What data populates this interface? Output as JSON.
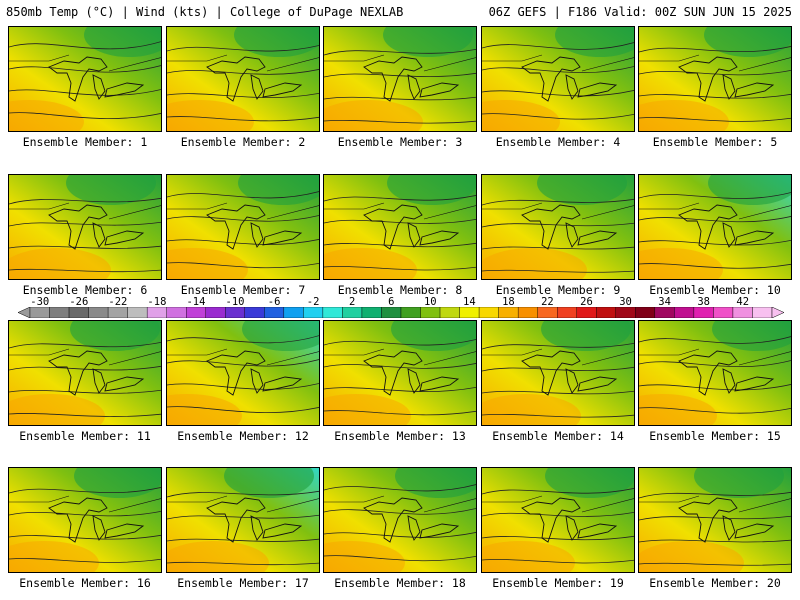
{
  "header": {
    "left_title": "850mb Temp (°C) | Wind (kts) | College of DuPage NEXLAB",
    "right_title": "06Z GEFS | F186 Valid: 00Z SUN JUN 15 2025"
  },
  "colorbar": {
    "ticks": [
      "-30",
      "-26",
      "-22",
      "-18",
      "-14",
      "-10",
      "-6",
      "-2",
      "2",
      "6",
      "10",
      "14",
      "18",
      "22",
      "26",
      "30",
      "34",
      "38",
      "42"
    ],
    "colors": [
      "#9a9a9a",
      "#7f7f7f",
      "#6a6a6a",
      "#8a8a8a",
      "#a3a3a3",
      "#bdbdbd",
      "#e0a0e8",
      "#d070e0",
      "#c040d8",
      "#9a2bd0",
      "#6a30d0",
      "#3a3ad8",
      "#2060e0",
      "#10a0f0",
      "#20d0f0",
      "#30e8d8",
      "#20d0a0",
      "#10b070",
      "#209040",
      "#40a020",
      "#80c010",
      "#c0d810",
      "#f0f000",
      "#f8d800",
      "#f8b000",
      "#f89000",
      "#f86820",
      "#f04020",
      "#e01818",
      "#c01010",
      "#a00818",
      "#800018",
      "#a00860",
      "#c01090",
      "#e020b0",
      "#f050c8",
      "#f090e0",
      "#f8c0f0"
    ]
  },
  "members": [
    {
      "label": "Ensemble Member: 1"
    },
    {
      "label": "Ensemble Member: 2"
    },
    {
      "label": "Ensemble Member: 3"
    },
    {
      "label": "Ensemble Member: 4"
    },
    {
      "label": "Ensemble Member: 5"
    },
    {
      "label": "Ensemble Member: 6"
    },
    {
      "label": "Ensemble Member: 7"
    },
    {
      "label": "Ensemble Member: 8"
    },
    {
      "label": "Ensemble Member: 9"
    },
    {
      "label": "Ensemble Member: 10"
    },
    {
      "label": "Ensemble Member: 11"
    },
    {
      "label": "Ensemble Member: 12"
    },
    {
      "label": "Ensemble Member: 13"
    },
    {
      "label": "Ensemble Member: 14"
    },
    {
      "label": "Ensemble Member: 15"
    },
    {
      "label": "Ensemble Member: 16"
    },
    {
      "label": "Ensemble Member: 17"
    },
    {
      "label": "Ensemble Member: 18"
    },
    {
      "label": "Ensemble Member: 19"
    },
    {
      "label": "Ensemble Member: 20"
    }
  ],
  "field_colors": {
    "warm": "#f8a800",
    "mild": "#f0e000",
    "cool": "#80c010",
    "cold": "#20a040",
    "cyan": "#30d8c8"
  }
}
